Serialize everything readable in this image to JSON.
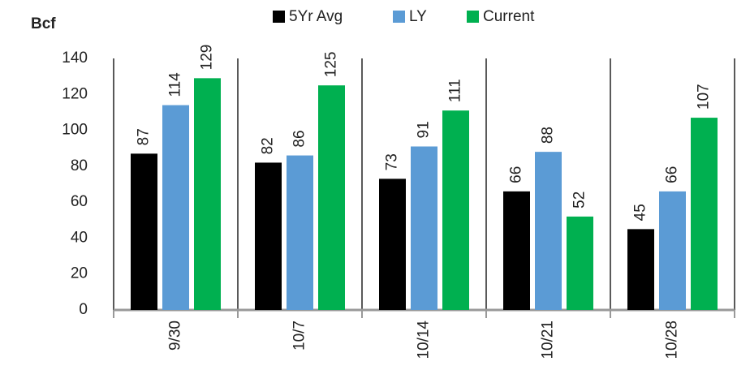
{
  "chart_data": {
    "type": "bar",
    "y_label": "Bcf",
    "categories": [
      "9/30",
      "10/7",
      "10/14",
      "10/21",
      "10/28"
    ],
    "series": [
      {
        "name": "5Yr Avg",
        "color": "#000000",
        "values": [
          87,
          82,
          73,
          66,
          45
        ]
      },
      {
        "name": "LY",
        "color": "#5b9bd5",
        "values": [
          114,
          86,
          91,
          88,
          66
        ]
      },
      {
        "name": "Current",
        "color": "#00b050",
        "values": [
          129,
          125,
          111,
          52,
          107
        ]
      }
    ],
    "ylim": [
      0,
      140
    ],
    "yticks": [
      0,
      20,
      40,
      60,
      80,
      100,
      120,
      140
    ],
    "legend": "top",
    "grid": false
  }
}
